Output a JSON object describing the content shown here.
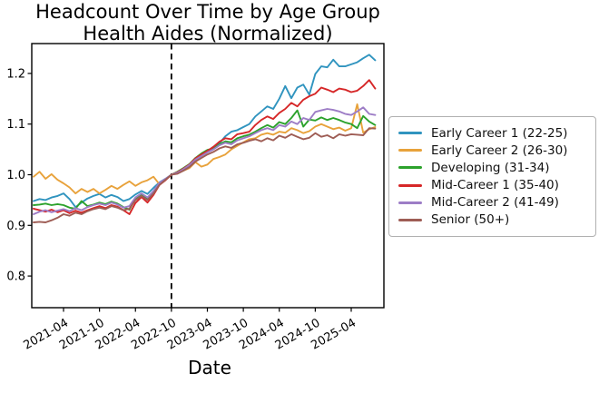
{
  "figure": {
    "title_line1": "Headcount Over Time by Age Group",
    "title_line2": "Health Aides (Normalized)",
    "xlabel": "Date"
  },
  "chart_data": {
    "type": "line",
    "title": "Headcount Over Time by Age Group",
    "subtitle": "Health Aides (Normalized)",
    "xlabel": "Date",
    "ylabel": "",
    "grid": false,
    "legend_position": "right-outside",
    "ylim": [
      0.74,
      1.26
    ],
    "y_ticks": [
      0.8,
      0.9,
      1.0,
      1.1,
      1.2
    ],
    "y_tick_labels": [
      "0.8",
      "0.9",
      "1.0",
      "1.1",
      "1.2"
    ],
    "x_tick_labels": [
      "2021-04",
      "2021-10",
      "2022-04",
      "2022-10",
      "2023-04",
      "2023-10",
      "2024-04",
      "2024-10",
      "2025-04"
    ],
    "normalization_vline": {
      "x": "2022-10",
      "style": "dashed",
      "color": "#000000",
      "value_at_line": 1.0
    },
    "x": [
      "2020-11",
      "2020-12",
      "2021-01",
      "2021-02",
      "2021-03",
      "2021-04",
      "2021-05",
      "2021-06",
      "2021-07",
      "2021-08",
      "2021-09",
      "2021-10",
      "2021-11",
      "2021-12",
      "2022-01",
      "2022-02",
      "2022-03",
      "2022-04",
      "2022-05",
      "2022-06",
      "2022-07",
      "2022-08",
      "2022-09",
      "2022-10",
      "2022-11",
      "2022-12",
      "2023-01",
      "2023-02",
      "2023-03",
      "2023-04",
      "2023-05",
      "2023-06",
      "2023-07",
      "2023-08",
      "2023-09",
      "2023-10",
      "2023-11",
      "2023-12",
      "2024-01",
      "2024-02",
      "2024-03",
      "2024-04",
      "2024-05",
      "2024-06",
      "2024-07",
      "2024-08",
      "2024-09",
      "2024-10",
      "2024-11",
      "2024-12",
      "2025-01",
      "2025-02",
      "2025-03",
      "2025-04",
      "2025-05",
      "2025-06",
      "2025-07",
      "2025-08"
    ],
    "series": [
      {
        "name": "Early Career 1 (22-25)",
        "color": "#3094bf",
        "values": [
          0.948,
          0.952,
          0.95,
          0.955,
          0.958,
          0.963,
          0.952,
          0.936,
          0.945,
          0.953,
          0.958,
          0.962,
          0.955,
          0.96,
          0.956,
          0.948,
          0.952,
          0.961,
          0.968,
          0.962,
          0.974,
          0.985,
          0.992,
          1.0,
          1.004,
          1.01,
          1.018,
          1.03,
          1.038,
          1.046,
          1.055,
          1.062,
          1.076,
          1.085,
          1.088,
          1.094,
          1.1,
          1.115,
          1.125,
          1.135,
          1.13,
          1.15,
          1.175,
          1.151,
          1.172,
          1.178,
          1.158,
          1.199,
          1.214,
          1.212,
          1.227,
          1.214,
          1.214,
          1.218,
          1.222,
          1.23,
          1.237,
          1.226
        ]
      },
      {
        "name": "Early Career 2 (26-30)",
        "color": "#e8a23b",
        "values": [
          0.996,
          1.006,
          0.992,
          1.001,
          0.99,
          0.983,
          0.975,
          0.963,
          0.972,
          0.966,
          0.972,
          0.963,
          0.97,
          0.978,
          0.972,
          0.98,
          0.987,
          0.978,
          0.985,
          0.989,
          0.996,
          0.981,
          0.99,
          1.0,
          1.003,
          1.008,
          1.013,
          1.025,
          1.016,
          1.02,
          1.031,
          1.035,
          1.04,
          1.05,
          1.057,
          1.064,
          1.07,
          1.072,
          1.079,
          1.082,
          1.079,
          1.085,
          1.083,
          1.092,
          1.088,
          1.082,
          1.086,
          1.095,
          1.1,
          1.095,
          1.09,
          1.093,
          1.087,
          1.092,
          1.139,
          1.083,
          1.09,
          1.094
        ]
      },
      {
        "name": "Developing (31-34)",
        "color": "#2ca22c",
        "values": [
          0.94,
          0.941,
          0.943,
          0.94,
          0.942,
          0.94,
          0.935,
          0.933,
          0.948,
          0.938,
          0.941,
          0.945,
          0.942,
          0.947,
          0.943,
          0.936,
          0.931,
          0.953,
          0.962,
          0.951,
          0.964,
          0.982,
          0.991,
          1.0,
          1.006,
          1.013,
          1.021,
          1.033,
          1.042,
          1.049,
          1.052,
          1.06,
          1.066,
          1.064,
          1.072,
          1.076,
          1.079,
          1.085,
          1.092,
          1.098,
          1.093,
          1.104,
          1.1,
          1.112,
          1.127,
          1.095,
          1.109,
          1.107,
          1.113,
          1.108,
          1.112,
          1.108,
          1.103,
          1.1,
          1.092,
          1.116,
          1.105,
          1.098
        ]
      },
      {
        "name": "Mid-Career 1 (35-40)",
        "color": "#d62728",
        "values": [
          0.933,
          0.93,
          0.927,
          0.931,
          0.926,
          0.93,
          0.924,
          0.929,
          0.925,
          0.93,
          0.934,
          0.938,
          0.934,
          0.94,
          0.937,
          0.93,
          0.922,
          0.944,
          0.956,
          0.945,
          0.96,
          0.98,
          0.989,
          1.0,
          1.005,
          1.012,
          1.02,
          1.032,
          1.04,
          1.047,
          1.055,
          1.065,
          1.072,
          1.07,
          1.08,
          1.082,
          1.085,
          1.098,
          1.108,
          1.115,
          1.11,
          1.122,
          1.13,
          1.142,
          1.135,
          1.148,
          1.155,
          1.16,
          1.172,
          1.168,
          1.163,
          1.17,
          1.168,
          1.163,
          1.166,
          1.175,
          1.187,
          1.17
        ]
      },
      {
        "name": "Mid-Career 2 (41-49)",
        "color": "#9d7dc6",
        "values": [
          0.922,
          0.927,
          0.93,
          0.926,
          0.929,
          0.932,
          0.928,
          0.934,
          0.93,
          0.936,
          0.94,
          0.943,
          0.94,
          0.945,
          0.941,
          0.935,
          0.938,
          0.955,
          0.963,
          0.955,
          0.968,
          0.984,
          0.992,
          1.0,
          1.004,
          1.011,
          1.019,
          1.03,
          1.037,
          1.044,
          1.05,
          1.058,
          1.063,
          1.06,
          1.068,
          1.072,
          1.076,
          1.082,
          1.088,
          1.092,
          1.088,
          1.098,
          1.095,
          1.105,
          1.1,
          1.112,
          1.108,
          1.124,
          1.127,
          1.13,
          1.128,
          1.125,
          1.12,
          1.118,
          1.125,
          1.133,
          1.12,
          1.118
        ]
      },
      {
        "name": "Senior (50+)",
        "color": "#9e5d55",
        "values": [
          0.906,
          0.907,
          0.906,
          0.91,
          0.915,
          0.922,
          0.919,
          0.925,
          0.922,
          0.928,
          0.932,
          0.935,
          0.932,
          0.938,
          0.935,
          0.93,
          0.933,
          0.95,
          0.958,
          0.95,
          0.963,
          0.98,
          0.99,
          1.0,
          1.002,
          1.008,
          1.015,
          1.026,
          1.033,
          1.04,
          1.045,
          1.052,
          1.056,
          1.053,
          1.06,
          1.063,
          1.067,
          1.07,
          1.066,
          1.072,
          1.068,
          1.077,
          1.073,
          1.08,
          1.075,
          1.07,
          1.073,
          1.082,
          1.075,
          1.078,
          1.072,
          1.08,
          1.077,
          1.08,
          1.079,
          1.078,
          1.092,
          1.091
        ]
      }
    ]
  }
}
